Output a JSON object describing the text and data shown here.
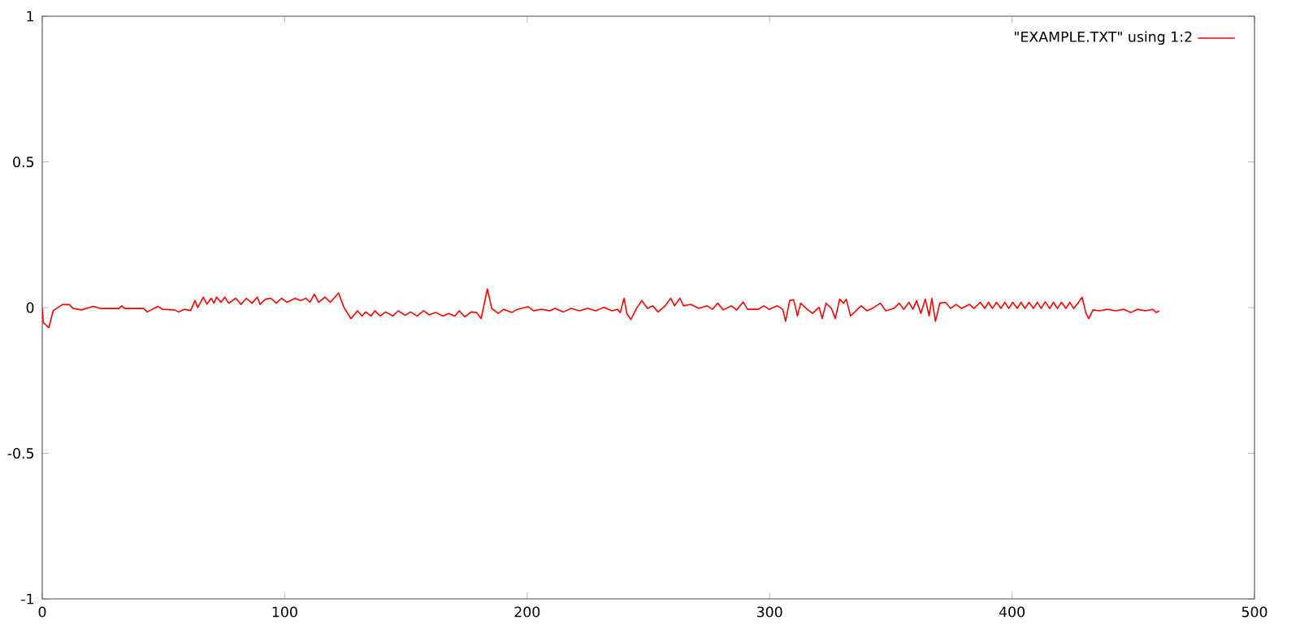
{
  "chart_data": {
    "type": "line",
    "series": [
      {
        "name": "\"EXAMPLE.TXT\" using 1:2",
        "color": "#ff0000",
        "x": [
          0,
          0.45,
          2.7,
          4.5,
          8.3,
          11.2,
          12.7,
          16.1,
          21,
          23.9,
          31.7,
          32.8,
          34,
          41.8,
          43.3,
          47.8,
          49.6,
          54.5,
          56.3,
          58.5,
          61.2,
          63,
          64.1,
          66.4,
          67.9,
          69.7,
          70.8,
          71.9,
          73.7,
          75.3,
          76.9,
          79.8,
          82,
          84.2,
          86.5,
          88.7,
          89.8,
          92.1,
          94.3,
          96.5,
          98.7,
          101,
          104.3,
          106.6,
          108.8,
          110.4,
          112.2,
          114,
          116.6,
          118.8,
          122.2,
          124.4,
          127.3,
          129.6,
          130,
          131.9,
          133.4,
          135.6,
          137.2,
          139.4,
          141.6,
          144.6,
          146.8,
          149.7,
          151.9,
          154.6,
          157.3,
          159.5,
          162.4,
          165.3,
          167.6,
          170.2,
          172,
          174.3,
          176.9,
          179.2,
          181,
          183.6,
          185.4,
          188.1,
          190.3,
          193.7,
          195.9,
          200.4,
          202.6,
          205.9,
          209.3,
          211.5,
          214.9,
          218.2,
          221.6,
          224.9,
          228.3,
          231.6,
          235,
          237.2,
          238.4,
          240,
          241.1,
          242.8,
          245.1,
          247.3,
          249.6,
          251.8,
          254,
          256.9,
          259.2,
          260.8,
          263,
          264.5,
          267.5,
          270.8,
          274.2,
          276.4,
          278.6,
          280.9,
          284.2,
          286.4,
          289.1,
          290.9,
          295.4,
          297.6,
          299.8,
          303.2,
          305.4,
          306.6,
          308.3,
          309.9,
          311.5,
          312.8,
          315.5,
          317.7,
          320.4,
          321.7,
          323.3,
          325.5,
          327.1,
          328.9,
          330.5,
          331.6,
          333.4,
          335.6,
          337.8,
          340.1,
          342.3,
          345.7,
          347.9,
          351.2,
          353.5,
          355.3,
          357.5,
          359.1,
          360.6,
          362.4,
          364.2,
          365.8,
          366.9,
          368.4,
          370.2,
          372.5,
          374.7,
          376.9,
          379.2,
          382.5,
          384.3,
          386.9,
          388.7,
          390.3,
          391.9,
          393.6,
          395.4,
          397,
          398.6,
          400.3,
          402.1,
          403.7,
          405.3,
          407,
          408.8,
          410.4,
          412,
          413.7,
          415.5,
          417.1,
          418.7,
          420.4,
          422.2,
          423.8,
          425.4,
          427.2,
          428.9,
          430.5,
          431.6,
          433.4,
          436.1,
          439.4,
          442.8,
          446.1,
          449,
          451.7,
          455.1,
          458,
          459.5,
          460.7
        ],
        "values": [
          0,
          -0.052,
          -0.069,
          -0.011,
          0.01,
          0.01,
          -0.003,
          -0.008,
          0.004,
          -0.003,
          -0.003,
          0.006,
          -0.003,
          -0.003,
          -0.015,
          0.004,
          -0.006,
          -0.008,
          -0.015,
          -0.006,
          -0.01,
          0.024,
          0,
          0.036,
          0.012,
          0.032,
          0.015,
          0.036,
          0.018,
          0.036,
          0.015,
          0.032,
          0.011,
          0.032,
          0.015,
          0.036,
          0.011,
          0.029,
          0.032,
          0.015,
          0.032,
          0.018,
          0.032,
          0.024,
          0.032,
          0.018,
          0.046,
          0.018,
          0.036,
          0.018,
          0.05,
          0.001,
          -0.038,
          -0.015,
          -0.011,
          -0.029,
          -0.015,
          -0.029,
          -0.011,
          -0.029,
          -0.015,
          -0.029,
          -0.011,
          -0.027,
          -0.015,
          -0.029,
          -0.011,
          -0.025,
          -0.017,
          -0.029,
          -0.02,
          -0.029,
          -0.011,
          -0.032,
          -0.015,
          -0.017,
          -0.038,
          0.064,
          -0.003,
          -0.02,
          -0.006,
          -0.017,
          -0.006,
          0.003,
          -0.011,
          -0.006,
          -0.011,
          -0.003,
          -0.015,
          -0.003,
          -0.011,
          -0.003,
          -0.011,
          0.001,
          -0.011,
          -0.006,
          -0.017,
          0.032,
          -0.02,
          -0.041,
          -0.003,
          0.024,
          -0.003,
          0.006,
          -0.015,
          0.006,
          0.032,
          0.006,
          0.032,
          0.006,
          0.011,
          -0.003,
          0.006,
          -0.006,
          0.015,
          -0.008,
          0.006,
          -0.008,
          0.019,
          -0.006,
          -0.006,
          0.006,
          -0.006,
          0.006,
          -0.006,
          -0.047,
          0.024,
          0.027,
          -0.029,
          0.015,
          -0.006,
          -0.02,
          0.001,
          -0.038,
          0.015,
          -0.003,
          -0.038,
          0.029,
          0.015,
          0.029,
          -0.029,
          -0.011,
          0.006,
          -0.011,
          -0.003,
          0.015,
          -0.011,
          -0.003,
          0.015,
          -0.006,
          0.018,
          -0.006,
          0.024,
          -0.02,
          0.029,
          -0.029,
          0.032,
          -0.047,
          0.015,
          0.018,
          -0.003,
          0.011,
          -0.003,
          0.011,
          -0.003,
          0.018,
          -0.003,
          0.018,
          -0.003,
          0.018,
          -0.003,
          0.018,
          -0.003,
          0.018,
          -0.003,
          0.018,
          -0.003,
          0.018,
          -0.003,
          0.018,
          -0.003,
          0.02,
          -0.003,
          0.018,
          -0.003,
          0.018,
          -0.003,
          0.018,
          -0.003,
          0.015,
          0.036,
          -0.02,
          -0.038,
          -0.008,
          -0.011,
          -0.006,
          -0.011,
          -0.006,
          -0.017,
          -0.006,
          -0.011,
          -0.006,
          -0.017,
          -0.011
        ]
      }
    ],
    "xlim": [
      0,
      500
    ],
    "ylim": [
      -1,
      1
    ],
    "xticks": [
      0,
      100,
      200,
      300,
      400,
      500
    ],
    "yticks": [
      -1,
      -0.5,
      0,
      0.5,
      1
    ],
    "legend": "top right",
    "grid": false
  }
}
